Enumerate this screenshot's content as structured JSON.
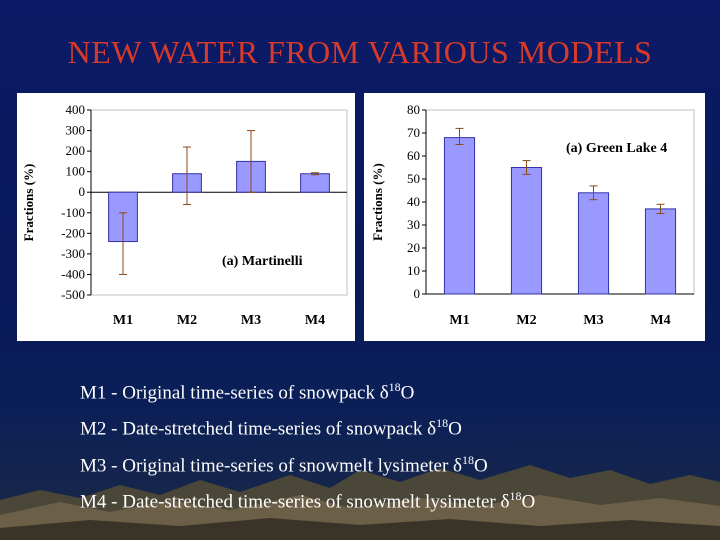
{
  "title": "NEW WATER FROM VARIOUS MODELS",
  "colors": {
    "title": "#d63a2a",
    "bar": "#9999ff",
    "bar_stroke": "#3333aa",
    "error": "#8a4a1a"
  },
  "chart_data": [
    {
      "type": "bar",
      "annotation": "(a) Martinelli",
      "ylabel": "Fractions (%)",
      "categories": [
        "M1",
        "M2",
        "M3",
        "M4"
      ],
      "values": [
        -240,
        90,
        150,
        90
      ],
      "error_bars": [
        [
          -400,
          -100
        ],
        [
          -60,
          220
        ],
        [
          0,
          300
        ],
        [
          85,
          95
        ]
      ],
      "yticks": [
        400,
        300,
        200,
        100,
        0,
        -100,
        -200,
        -300,
        -400,
        -500
      ],
      "ylim": [
        -500,
        400
      ]
    },
    {
      "type": "bar",
      "annotation": "(a) Green Lake 4",
      "ylabel": "Fractions (%)",
      "categories": [
        "M1",
        "M2",
        "M3",
        "M4"
      ],
      "values": [
        68,
        55,
        44,
        37
      ],
      "error_bars": [
        [
          65,
          72
        ],
        [
          52,
          58
        ],
        [
          41,
          47
        ],
        [
          35,
          39
        ]
      ],
      "yticks": [
        80,
        70,
        60,
        50,
        40,
        30,
        20,
        10,
        0
      ],
      "ylim": [
        0,
        80
      ]
    }
  ],
  "captions": [
    {
      "prefix": "M1 - Original time-series of snowpack δ",
      "sup": "18",
      "suffix": "O"
    },
    {
      "prefix": "M2 - Date-stretched time-series of snowpack δ",
      "sup": "18",
      "suffix": "O"
    },
    {
      "prefix": "M3 - Original time-series of snowmelt lysimeter δ",
      "sup": "18",
      "suffix": "O"
    },
    {
      "prefix": "M4 - Date-stretched time-series of snowmelt lysimeter δ",
      "sup": "18",
      "suffix": "O"
    }
  ]
}
